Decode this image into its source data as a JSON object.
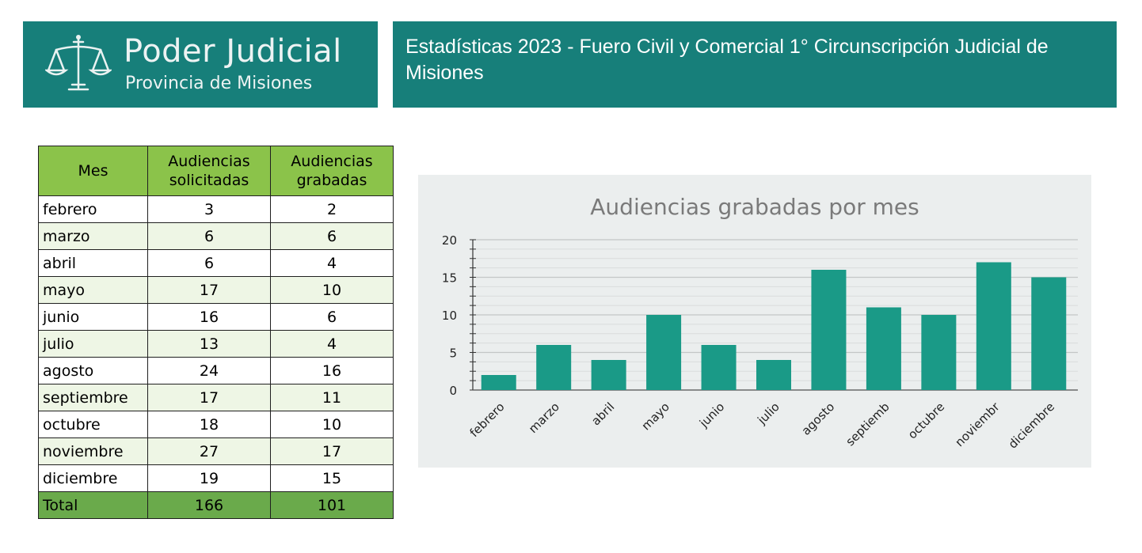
{
  "header": {
    "brand_title": "Poder Judicial",
    "brand_subtitle": "Provincia de Misiones",
    "report_title": "Estadísticas 2023 - Fuero Civil y Comercial 1° Circunscripción Judicial de Misiones",
    "logo_icon": "scales-of-justice-icon",
    "brand_color": "#177f7a"
  },
  "table": {
    "headers": [
      "Mes",
      "Audiencias solicitadas",
      "Audiencias grabadas"
    ],
    "rows": [
      [
        "febrero",
        "3",
        "2"
      ],
      [
        "marzo",
        "6",
        "6"
      ],
      [
        "abril",
        "6",
        "4"
      ],
      [
        "mayo",
        "17",
        "10"
      ],
      [
        "junio",
        "16",
        "6"
      ],
      [
        "julio",
        "13",
        "4"
      ],
      [
        "agosto",
        "24",
        "16"
      ],
      [
        "septiembre",
        "17",
        "11"
      ],
      [
        "octubre",
        "18",
        "10"
      ],
      [
        "noviembre",
        "27",
        "17"
      ],
      [
        "diciembre",
        "19",
        "15"
      ]
    ],
    "total": [
      "Total",
      "166",
      "101"
    ],
    "header_color": "#8bc34a",
    "alt_row_color": "#eef6e5",
    "total_row_color": "#6aaa4b"
  },
  "chart_data": {
    "type": "bar",
    "title": "Audiencias grabadas por mes",
    "categories": [
      "febrero",
      "marzo",
      "abril",
      "mayo",
      "junio",
      "julio",
      "agosto",
      "septiemb",
      "octubre",
      "noviembr",
      "diciembre"
    ],
    "values": [
      2,
      6,
      4,
      10,
      6,
      4,
      16,
      11,
      10,
      17,
      15
    ],
    "ylim": [
      0,
      20
    ],
    "yticks": [
      0,
      5,
      10,
      15,
      20
    ],
    "grid": true,
    "bar_color": "#1a9a87",
    "background": "#ebeeee"
  }
}
